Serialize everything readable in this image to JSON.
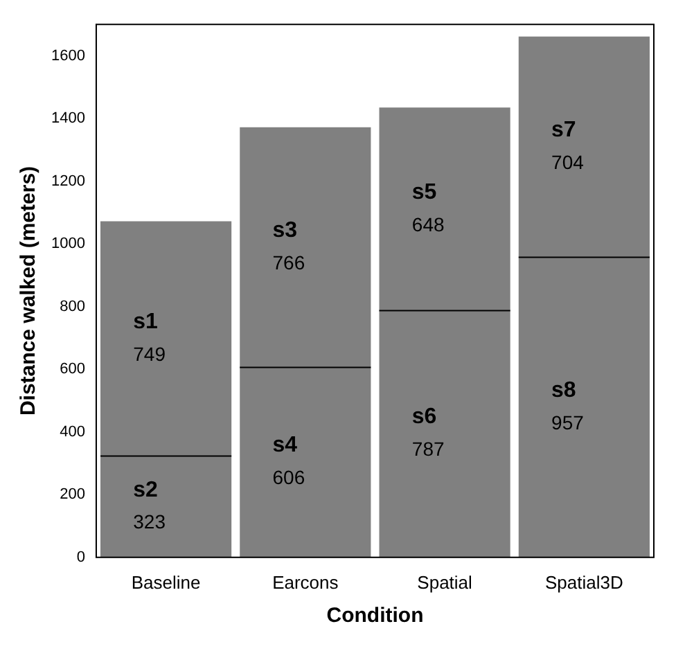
{
  "chart_data": {
    "type": "bar",
    "stacked": true,
    "xlabel": "Condition",
    "ylabel": "Distance walked (meters)",
    "categories": [
      "Baseline",
      "Earcons",
      "Spatial",
      "Spatial3D"
    ],
    "series": [
      {
        "color": "#808080",
        "values": [
          323,
          606,
          787,
          957
        ],
        "value_labels": [
          "s2\n323",
          "s4\n606",
          "s6\n787",
          "s8\n957"
        ]
      },
      {
        "color": "#808080",
        "values": [
          749,
          766,
          648,
          704
        ],
        "value_labels": [
          "s1\n749",
          "s3\n766",
          "s5\n648",
          "s7\n704"
        ]
      }
    ],
    "ylim": [
      0,
      1700
    ],
    "yticks": [
      0,
      200,
      400,
      600,
      800,
      1000,
      1200,
      1400,
      1600
    ],
    "grid": false,
    "legend": false
  }
}
